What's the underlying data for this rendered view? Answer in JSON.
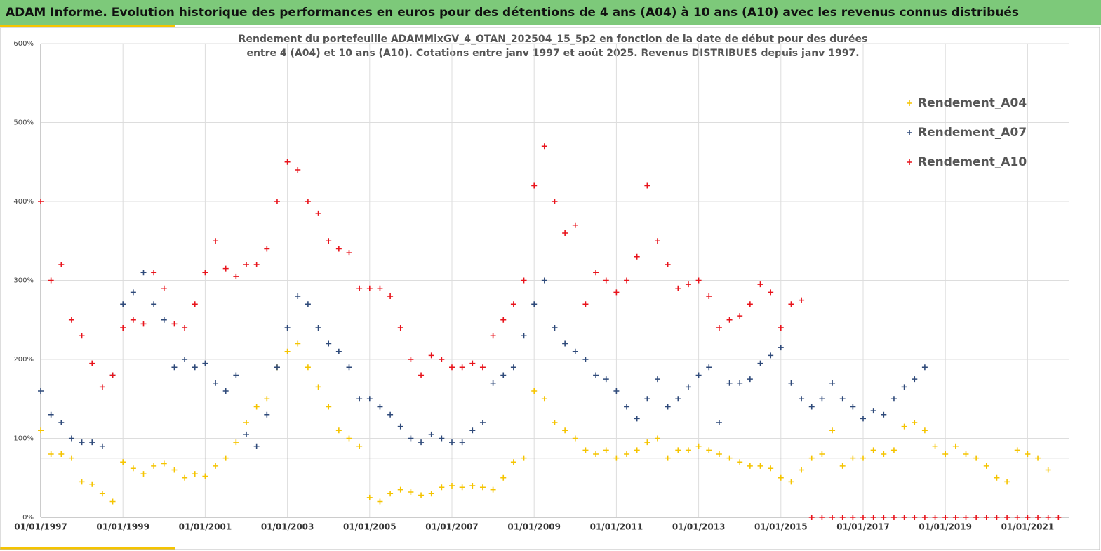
{
  "header": {
    "title": "ADAM Informe. Evolution historique des performances en euros pour des détentions de 4 ans (A04) à 10 ans (A10) avec les revenus connus distribués"
  },
  "chart_data": {
    "type": "scatter",
    "title": [
      "Rendement du portefeuille ADAMMixGV_4_OTAN_202504_15_5p2  en fonction de la date de début pour des durées",
      "entre 4 (A04) et 10 ans (A10). Cotations entre janv 1997 et août 2025. Revenus DISTRIBUES depuis janv 1997."
    ],
    "x": [
      1997,
      1997.25,
      1997.5,
      1997.75,
      1998,
      1998.25,
      1998.5,
      1998.75,
      1999,
      1999.25,
      1999.5,
      1999.75,
      2000,
      2000.25,
      2000.5,
      2000.75,
      2001,
      2001.25,
      2001.5,
      2001.75,
      2002,
      2002.25,
      2002.5,
      2002.75,
      2003,
      2003.25,
      2003.5,
      2003.75,
      2004,
      2004.25,
      2004.5,
      2004.75,
      2005,
      2005.25,
      2005.5,
      2005.75,
      2006,
      2006.25,
      2006.5,
      2006.75,
      2007,
      2007.25,
      2007.5,
      2007.75,
      2008,
      2008.25,
      2008.5,
      2008.75,
      2009,
      2009.25,
      2009.5,
      2009.75,
      2010,
      2010.25,
      2010.5,
      2010.75,
      2011,
      2011.25,
      2011.5,
      2011.75,
      2012,
      2012.25,
      2012.5,
      2012.75,
      2013,
      2013.25,
      2013.5,
      2013.75,
      2014,
      2014.25,
      2014.5,
      2014.75,
      2015,
      2015.25,
      2015.5,
      2015.75,
      2016,
      2016.25,
      2016.5,
      2016.75,
      2017,
      2017.25,
      2017.5,
      2017.75,
      2018,
      2018.25,
      2018.5,
      2018.75,
      2019,
      2019.25,
      2019.5,
      2019.75,
      2020,
      2020.25,
      2020.5,
      2020.75,
      2021,
      2021.25,
      2021.5,
      2021.75
    ],
    "series": [
      {
        "name": "Rendement_A04",
        "color": "#f5c400",
        "values": [
          110,
          80,
          80,
          75,
          45,
          42,
          30,
          20,
          70,
          62,
          55,
          65,
          68,
          60,
          50,
          55,
          52,
          65,
          75,
          95,
          120,
          140,
          150,
          190,
          210,
          220,
          190,
          165,
          140,
          110,
          100,
          90,
          25,
          20,
          30,
          35,
          32,
          28,
          30,
          38,
          40,
          38,
          40,
          38,
          35,
          50,
          70,
          75,
          160,
          150,
          120,
          110,
          100,
          85,
          80,
          85,
          75,
          80,
          85,
          95,
          100,
          75,
          85,
          85,
          90,
          85,
          80,
          75,
          70,
          65,
          65,
          62,
          50,
          45,
          60,
          75,
          80,
          110,
          65,
          75,
          75,
          85,
          80,
          85,
          115,
          120,
          110,
          90,
          80,
          90,
          80,
          75,
          65,
          50,
          45,
          85,
          80,
          75,
          60,
          null
        ]
      },
      {
        "name": "Rendement_A07",
        "color": "#2f4a7a",
        "values": [
          160,
          130,
          120,
          100,
          95,
          95,
          90,
          180,
          270,
          285,
          310,
          270,
          250,
          190,
          200,
          190,
          195,
          170,
          160,
          180,
          105,
          90,
          130,
          190,
          240,
          280,
          270,
          240,
          220,
          210,
          190,
          150,
          150,
          140,
          130,
          115,
          100,
          95,
          105,
          100,
          95,
          95,
          110,
          120,
          170,
          180,
          190,
          230,
          270,
          300,
          240,
          220,
          210,
          200,
          180,
          175,
          160,
          140,
          125,
          150,
          175,
          140,
          150,
          165,
          180,
          190,
          120,
          170,
          170,
          175,
          195,
          205,
          215,
          170,
          150,
          140,
          150,
          170,
          150,
          140,
          125,
          135,
          130,
          150,
          165,
          175,
          190,
          null,
          null,
          null,
          null,
          null,
          null,
          null,
          null,
          null,
          null,
          null,
          null,
          null
        ]
      },
      {
        "name": "Rendement_A10",
        "color": "#e8141c",
        "values": [
          400,
          300,
          320,
          250,
          230,
          195,
          165,
          180,
          240,
          250,
          245,
          310,
          290,
          245,
          240,
          270,
          310,
          350,
          315,
          305,
          320,
          320,
          340,
          400,
          450,
          440,
          400,
          385,
          350,
          340,
          335,
          290,
          290,
          290,
          280,
          240,
          200,
          180,
          205,
          200,
          190,
          190,
          195,
          190,
          230,
          250,
          270,
          300,
          420,
          470,
          400,
          360,
          370,
          270,
          310,
          300,
          285,
          300,
          330,
          420,
          350,
          320,
          290,
          295,
          300,
          280,
          240,
          250,
          255,
          270,
          295,
          285,
          240,
          270,
          275,
          0,
          0,
          0,
          0,
          0,
          0,
          0,
          0,
          0,
          0,
          0,
          0,
          0,
          0,
          0,
          0,
          0,
          0,
          0,
          0,
          0,
          0,
          0,
          0,
          0
        ]
      }
    ],
    "xlim": [
      1997,
      2022
    ],
    "xticks": [
      {
        "value": 1997,
        "label": "01/01/1997"
      },
      {
        "value": 1999,
        "label": "01/01/1999"
      },
      {
        "value": 2001,
        "label": "01/01/2001"
      },
      {
        "value": 2003,
        "label": "01/01/2003"
      },
      {
        "value": 2005,
        "label": "01/01/2005"
      },
      {
        "value": 2007,
        "label": "01/01/2007"
      },
      {
        "value": 2009,
        "label": "01/01/2009"
      },
      {
        "value": 2011,
        "label": "01/01/2011"
      },
      {
        "value": 2013,
        "label": "01/01/2013"
      },
      {
        "value": 2015,
        "label": "01/01/2015"
      },
      {
        "value": 2017,
        "label": "01/01/2017"
      },
      {
        "value": 2019,
        "label": "01/01/2019"
      },
      {
        "value": 2021,
        "label": "01/01/2021"
      }
    ],
    "ylim": [
      0,
      600
    ],
    "yticks": [
      {
        "value": 0,
        "label": "0%"
      },
      {
        "value": 100,
        "label": "100%"
      },
      {
        "value": 200,
        "label": "200%"
      },
      {
        "value": 300,
        "label": "300%"
      },
      {
        "value": 400,
        "label": "400%"
      },
      {
        "value": 500,
        "label": "500%"
      },
      {
        "value": 600,
        "label": "600%"
      }
    ],
    "hline": 75,
    "grid": true,
    "legend": "upper right"
  }
}
